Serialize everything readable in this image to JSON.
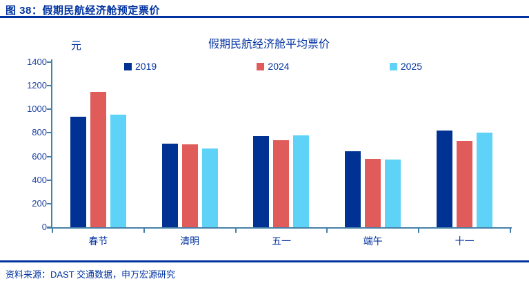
{
  "colors": {
    "navy_text": "#0032A0",
    "axis_line": "#4680A8",
    "bar_2019": "#003293",
    "bar_2024": "#E05C5B",
    "bar_2025": "#5ED3F7"
  },
  "header": {
    "title": "图 38：假期民航经济舱预定票价"
  },
  "footer": {
    "source": "资料来源：DAST 交通数据，申万宏源研究"
  },
  "chart_data": {
    "type": "bar",
    "title": "假期民航经济舱平均票价",
    "unit_label": "元",
    "categories": [
      "春节",
      "清明",
      "五一",
      "端午",
      "十一"
    ],
    "series": [
      {
        "name": "2019",
        "values": [
          935,
          710,
          775,
          645,
          820
        ]
      },
      {
        "name": "2024",
        "values": [
          1150,
          705,
          740,
          580,
          735
        ]
      },
      {
        "name": "2025",
        "values": [
          955,
          670,
          780,
          575,
          805
        ]
      }
    ],
    "ylim": [
      0,
      1400
    ],
    "ytick_step": 200,
    "grid": false,
    "legend_position": "top"
  }
}
